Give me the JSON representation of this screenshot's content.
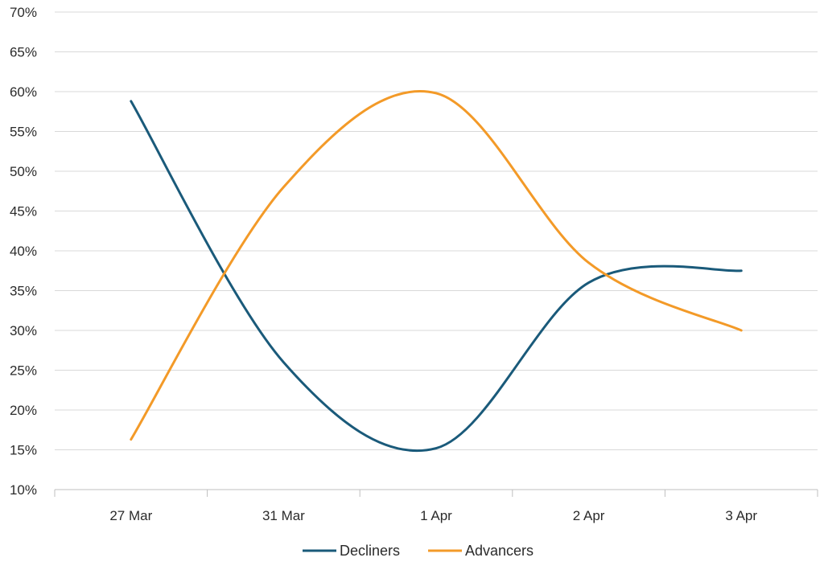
{
  "chart_data": {
    "type": "line",
    "title": "",
    "xlabel": "",
    "ylabel": "",
    "categories": [
      "27 Mar",
      "31 Mar",
      "1 Apr",
      "2 Apr",
      "3 Apr"
    ],
    "y_ticks": [
      "10%",
      "15%",
      "20%",
      "25%",
      "30%",
      "35%",
      "40%",
      "45%",
      "50%",
      "55%",
      "60%",
      "65%",
      "70%"
    ],
    "ylim": [
      10,
      70
    ],
    "grid": "horizontal",
    "legend_position": "bottom-center",
    "smooth": true,
    "series": [
      {
        "name": "Decliners",
        "color": "#1a5a7a",
        "values": [
          58.8,
          26.0,
          15.2,
          36.0,
          37.5
        ]
      },
      {
        "name": "Advancers",
        "color": "#f39a28",
        "values": [
          16.3,
          48.0,
          59.8,
          38.5,
          30.0
        ]
      }
    ]
  }
}
